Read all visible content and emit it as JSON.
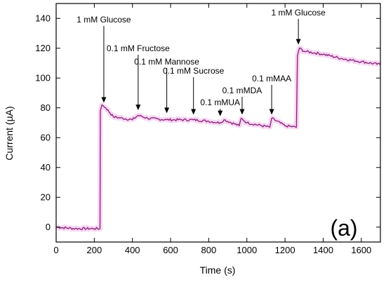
{
  "chart_data": {
    "type": "line",
    "panel_label": "(a)",
    "xlabel": "Time (s)",
    "ylabel": "Current (µA)",
    "xlim": [
      0,
      1700
    ],
    "ylim": [
      -10,
      150
    ],
    "xticks": [
      0,
      200,
      400,
      600,
      800,
      1000,
      1200,
      1400,
      1600
    ],
    "yticks": [
      0,
      20,
      40,
      60,
      80,
      100,
      120,
      140
    ],
    "colors": {
      "trace": "#8b2a78",
      "highlight": "#f2a6ea",
      "baseline": "#2b6a6a"
    },
    "series": [
      {
        "x": [
          0,
          100,
          200,
          230,
          232,
          240,
          260,
          300,
          400,
          430,
          480,
          580,
          720,
          800,
          860,
          880,
          960,
          970,
          1000,
          1120,
          1130,
          1200,
          1260,
          1265,
          1275,
          1300,
          1400,
          1500,
          1600,
          1700
        ],
        "y": [
          0,
          -1,
          -1,
          -1,
          78,
          82,
          80,
          74,
          72,
          75,
          73,
          72,
          72,
          71,
          70,
          72,
          68,
          73,
          70,
          67,
          73,
          68,
          67,
          115,
          120,
          118,
          116,
          113,
          111,
          109
        ]
      }
    ],
    "annotations": [
      {
        "text": "1 mM Glucose",
        "x": 250,
        "y": 82,
        "label_x": 250
      },
      {
        "text": "0.1 mM Fructose",
        "x": 430,
        "y": 77,
        "label_x": 430
      },
      {
        "text": "0.1 mM Mannose",
        "x": 580,
        "y": 75,
        "label_x": 580
      },
      {
        "text": "0.1 mM Sucrose",
        "x": 720,
        "y": 74,
        "label_x": 720
      },
      {
        "text": "0.1 mMUA",
        "x": 860,
        "y": 73,
        "label_x": 860
      },
      {
        "text": "0.1 mMDA",
        "x": 975,
        "y": 74,
        "label_x": 975
      },
      {
        "text": "0.1 mMAA",
        "x": 1130,
        "y": 74,
        "label_x": 1130
      },
      {
        "text": "1 mM Glucose",
        "x": 1270,
        "y": 121,
        "label_x": 1270
      }
    ]
  }
}
